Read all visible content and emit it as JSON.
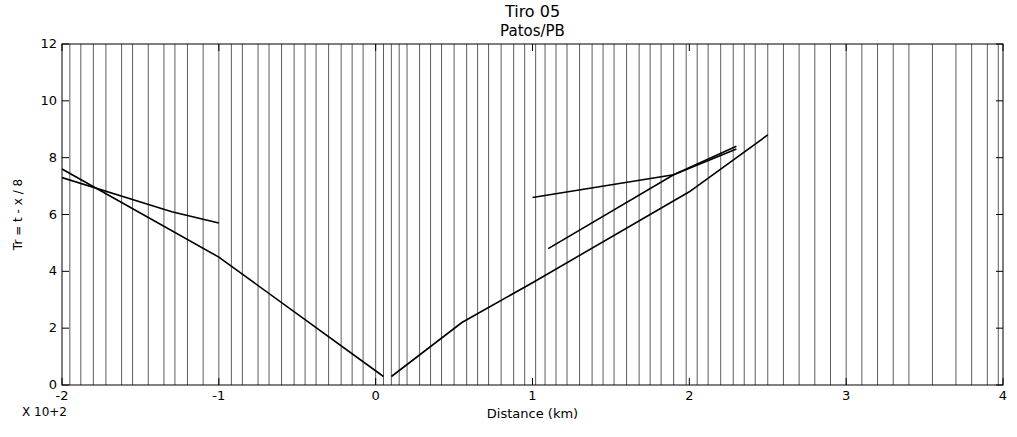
{
  "chart_data": {
    "type": "line",
    "title": "Tiro 05",
    "subtitle": "Patos/PB",
    "x_label": "Distance (km)",
    "y_label": "Tr = t - x / 8",
    "x_scale_label": "X 10+2",
    "xlim": [
      -2,
      4
    ],
    "ylim": [
      0,
      12
    ],
    "xticks": [
      -2,
      -1,
      0,
      1,
      2,
      3,
      4
    ],
    "yticks": [
      0,
      2,
      4,
      6,
      8,
      10,
      12
    ],
    "color": "#000000",
    "traces": [
      -1.95,
      -1.88,
      -1.8,
      -1.72,
      -1.62,
      -1.55,
      -1.45,
      -1.35,
      -1.28,
      -1.2,
      -1.1,
      -1.0,
      -0.92,
      -0.85,
      -0.75,
      -0.68,
      -0.6,
      -0.52,
      -0.45,
      -0.38,
      -0.3,
      -0.22,
      -0.15,
      -0.08,
      0.0,
      0.05,
      0.1,
      0.15,
      0.2,
      0.28,
      0.35,
      0.42,
      0.5,
      0.58,
      0.65,
      0.72,
      0.8,
      0.88,
      0.95,
      1.02,
      1.08,
      1.15,
      1.22,
      1.3,
      1.38,
      1.45,
      1.52,
      1.6,
      1.68,
      1.75,
      1.82,
      1.9,
      1.98,
      2.05,
      2.12,
      2.2,
      2.28,
      2.35,
      2.42,
      2.5,
      2.6,
      2.7,
      2.8,
      2.9,
      3.0,
      3.1,
      3.2,
      3.3,
      3.4,
      3.55,
      3.7,
      3.8,
      3.9,
      3.97
    ],
    "series": [
      {
        "color": "#000000",
        "x": [
          0.05,
          -1.0,
          -2.0
        ],
        "values": [
          0.3,
          4.5,
          7.6
        ]
      },
      {
        "color": "#000000",
        "x": [
          -1.0,
          -1.3,
          -2.0
        ],
        "values": [
          5.7,
          6.1,
          7.3
        ]
      },
      {
        "color": "#000000",
        "x": [
          0.1,
          0.55,
          1.0,
          2.0,
          2.5
        ],
        "values": [
          0.3,
          2.2,
          3.6,
          6.8,
          8.8
        ]
      },
      {
        "color": "#000000",
        "x": [
          1.1,
          1.9,
          2.3
        ],
        "values": [
          4.8,
          7.4,
          8.3
        ]
      },
      {
        "color": "#000000",
        "x": [
          1.0,
          1.9,
          2.3
        ],
        "values": [
          6.6,
          7.4,
          8.4
        ]
      }
    ]
  }
}
